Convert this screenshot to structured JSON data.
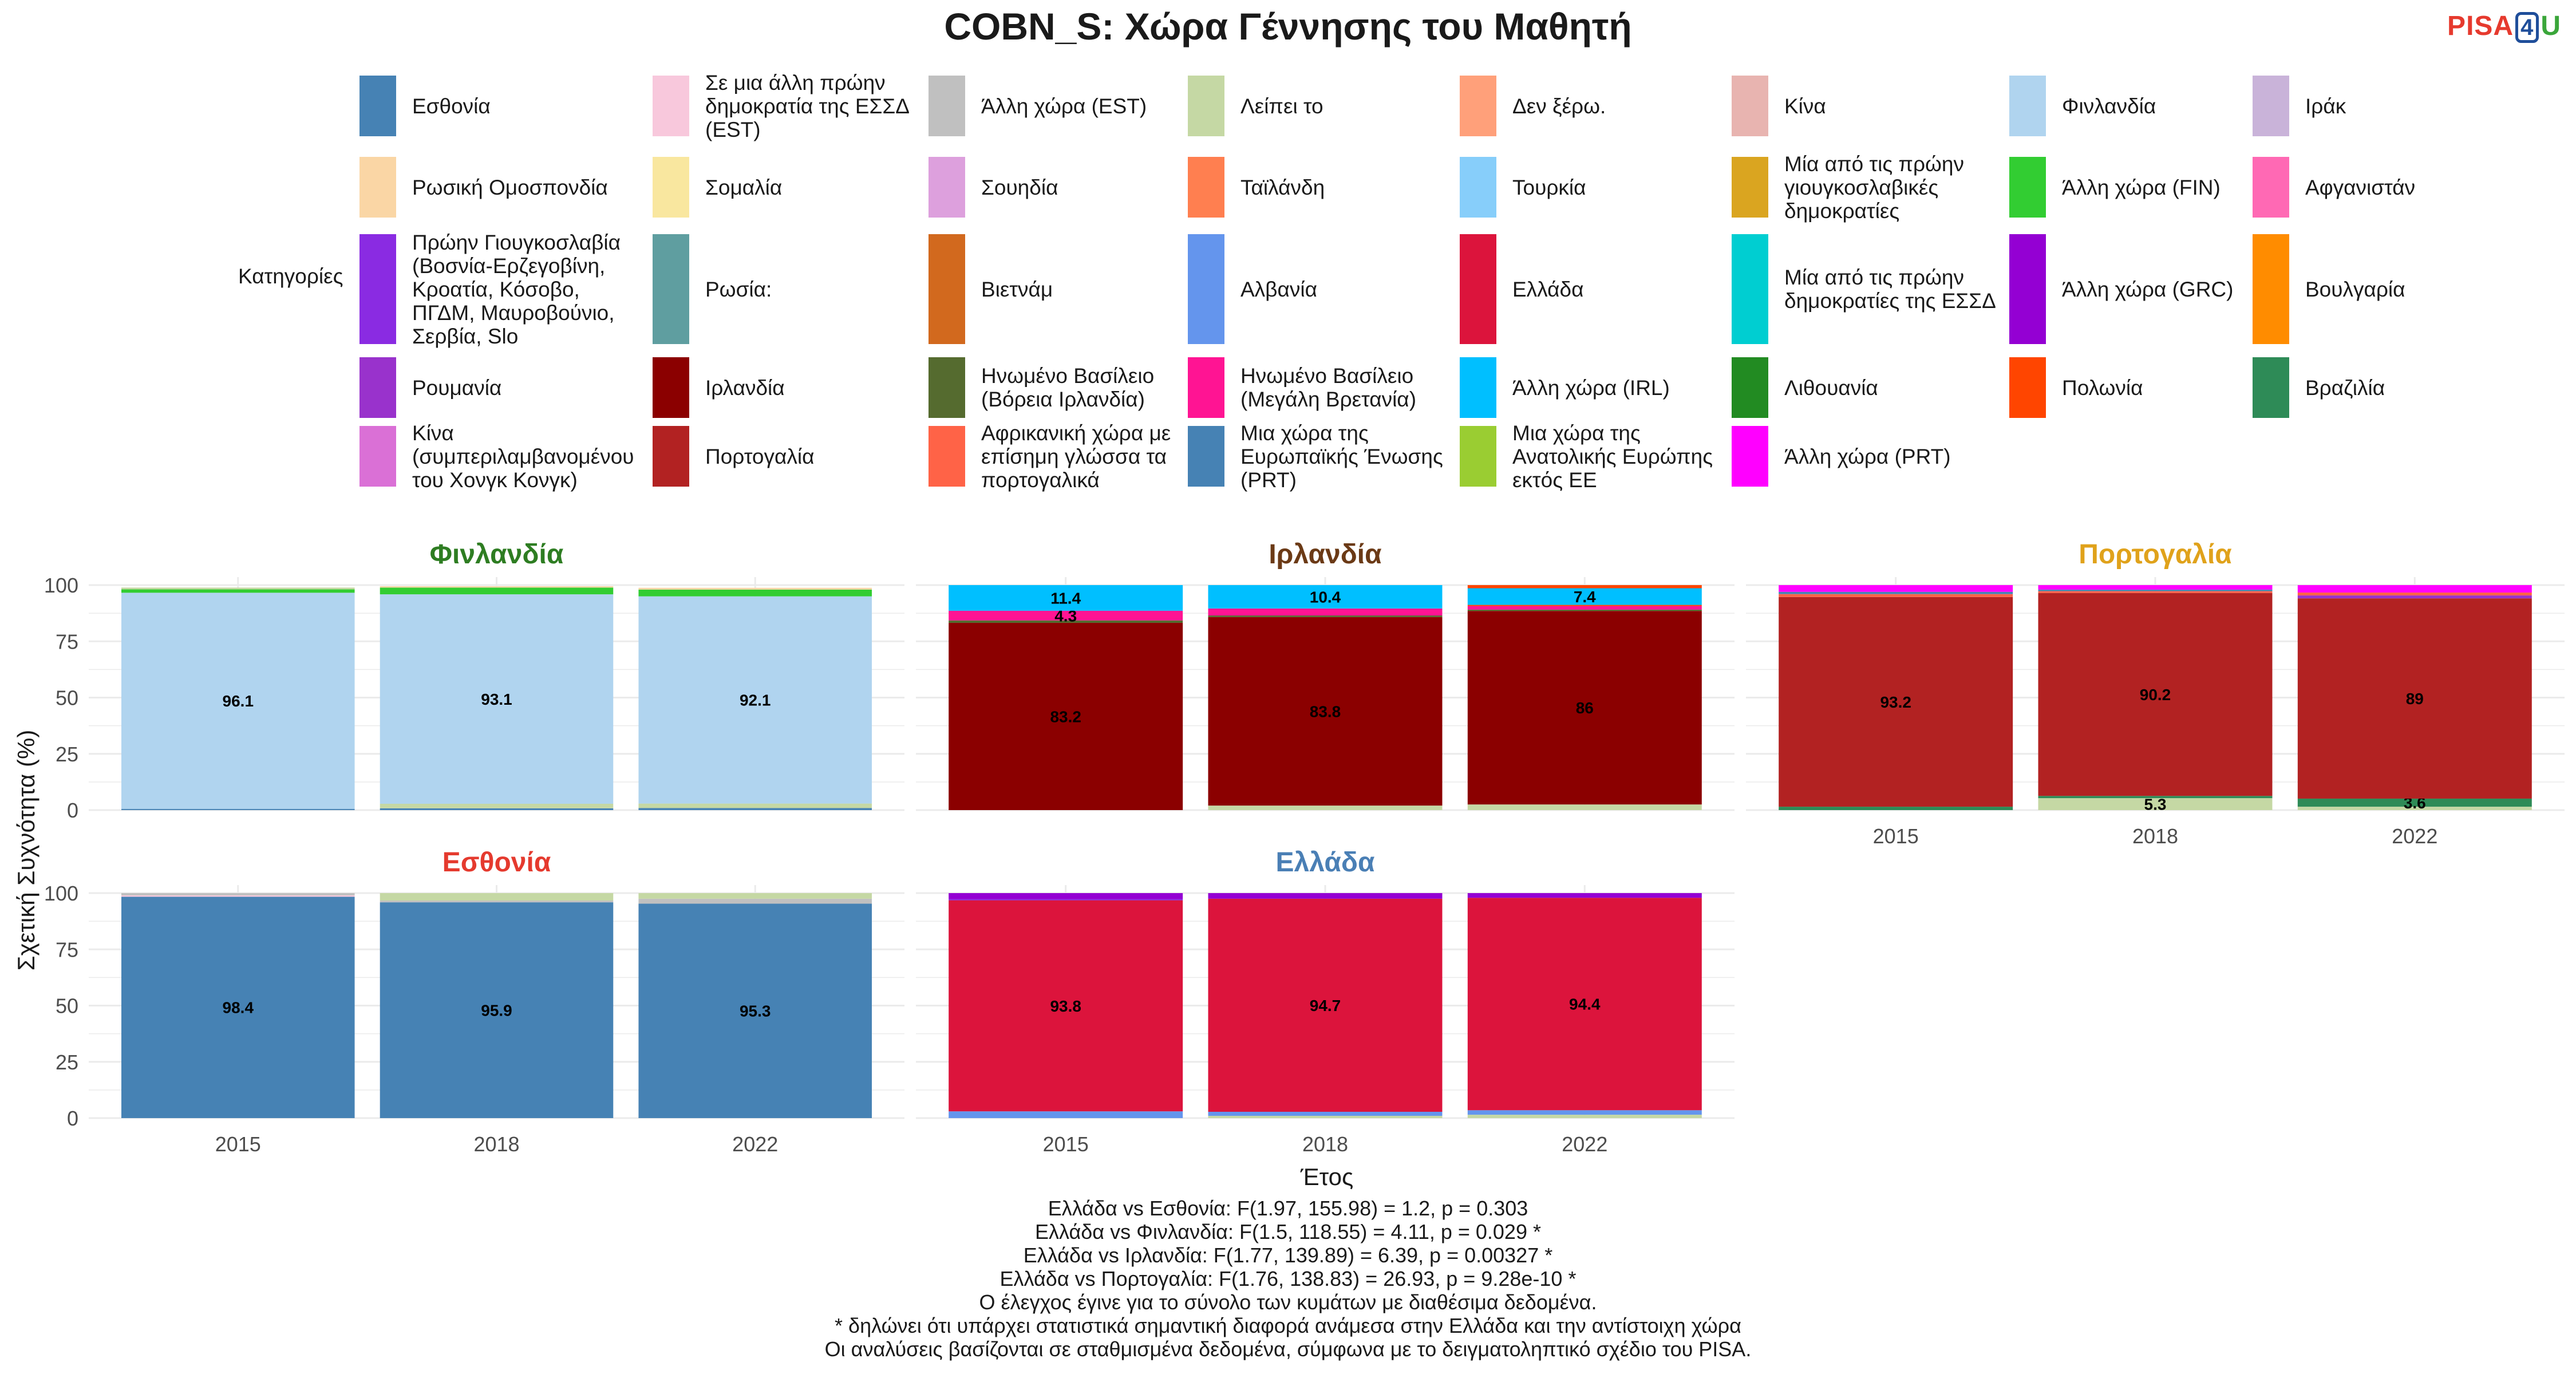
{
  "title": "COBN_S: Χώρα Γέννησης του Μαθητή",
  "logo": {
    "part1": "PISA",
    "part2": "4",
    "part3": "U"
  },
  "legend": {
    "title": "Κατηγορίες",
    "items": [
      {
        "label": "Εσθονία",
        "color": "#4682B4"
      },
      {
        "label": "Σε μια άλλη πρώην δημοκρατία της ΕΣΣΔ (EST)",
        "color": "#F8C8DC"
      },
      {
        "label": "Άλλη χώρα (EST)",
        "color": "#C0C0C0"
      },
      {
        "label": "Λείπει το",
        "color": "#C5D8A4"
      },
      {
        "label": "Δεν ξέρω.",
        "color": "#FFA07A"
      },
      {
        "label": "Κίνα",
        "color": "#E8B4B0"
      },
      {
        "label": "Φινλανδία",
        "color": "#B0D4EF"
      },
      {
        "label": "Ιράκ",
        "color": "#C9B3D9"
      },
      {
        "label": "Ρωσική Ομοσπονδία",
        "color": "#FAD6A5"
      },
      {
        "label": "Σομαλία",
        "color": "#F9E79F"
      },
      {
        "label": "Σουηδία",
        "color": "#DDA0DD"
      },
      {
        "label": "Ταϊλάνδη",
        "color": "#FF7F50"
      },
      {
        "label": "Τουρκία",
        "color": "#87CEFA"
      },
      {
        "label": "Μία από τις πρώην γιουγκοσλαβικές δημοκρατίες",
        "color": "#DAA520"
      },
      {
        "label": "Άλλη χώρα (FIN)",
        "color": "#32CD32"
      },
      {
        "label": "Αφγανιστάν",
        "color": "#FF69B4"
      },
      {
        "label": "Πρώην Γιουγκοσλαβία (Βοσνία-Ερζεγοβίνη, Κροατία, Κόσοβο, ΠΓΔΜ, Μαυροβούνιο, Σερβία, Slo",
        "color": "#8A2BE2"
      },
      {
        "label": "Ρωσία:",
        "color": "#5F9EA0"
      },
      {
        "label": "Βιετνάμ",
        "color": "#D2691E"
      },
      {
        "label": "Αλβανία",
        "color": "#6495ED"
      },
      {
        "label": "Ελλάδα",
        "color": "#DC143C"
      },
      {
        "label": "Μία από τις πρώην δημοκρατίες της ΕΣΣΔ",
        "color": "#00CED1"
      },
      {
        "label": "Άλλη χώρα (GRC)",
        "color": "#9400D3"
      },
      {
        "label": "Βουλγαρία",
        "color": "#FF8C00"
      },
      {
        "label": "Ρουμανία",
        "color": "#9932CC"
      },
      {
        "label": "Ιρλανδία",
        "color": "#8B0000"
      },
      {
        "label": "Ηνωμένο Βασίλειο (Βόρεια Ιρλανδία)",
        "color": "#556B2F"
      },
      {
        "label": "Ηνωμένο Βασίλειο (Μεγάλη Βρετανία)",
        "color": "#FF1493"
      },
      {
        "label": "Άλλη χώρα (IRL)",
        "color": "#00BFFF"
      },
      {
        "label": "Λιθουανία",
        "color": "#228B22"
      },
      {
        "label": "Πολωνία",
        "color": "#FF4500"
      },
      {
        "label": "Βραζιλία",
        "color": "#2E8B57"
      },
      {
        "label": "Κίνα (συμπεριλαμβανομένου του Χονγκ Κονγκ)",
        "color": "#DA70D6"
      },
      {
        "label": "Πορτογαλία",
        "color": "#B22222"
      },
      {
        "label": "Αφρικανική χώρα με επίσημη γλώσσα τα πορτογαλικά",
        "color": "#FF6347"
      },
      {
        "label": "Μια χώρα της Ευρωπαϊκής Ένωσης (PRT)",
        "color": "#4682B4"
      },
      {
        "label": "Μια χώρα της Ανατολικής Ευρώπης εκτός ΕΕ",
        "color": "#9ACD32"
      },
      {
        "label": "Άλλη χώρα (PRT)",
        "color": "#FF00FF"
      }
    ]
  },
  "chart_data": {
    "type": "bar",
    "stacked": true,
    "ylabel": "Σχετική Συχνότητα (%)",
    "xlabel": "Έτος",
    "ylim": [
      0,
      100
    ],
    "yticks": [
      0,
      25,
      50,
      75,
      100
    ],
    "grid": true,
    "legend_position": "top",
    "categories": [
      "2015",
      "2018",
      "2022"
    ],
    "panels": [
      {
        "name": "Φινλανδία",
        "title_color": "#2E7D22",
        "bars": [
          [
            {
              "c": "Εσθονία",
              "v": 0.5
            },
            {
              "c": "Φινλανδία",
              "v": 96.1,
              "label": "96.1"
            },
            {
              "c": "Άλλη χώρα (FIN)",
              "v": 1.5
            },
            {
              "c": "Λείπει το",
              "v": 0.8
            }
          ],
          [
            {
              "c": "Εσθονία",
              "v": 0.8
            },
            {
              "c": "Λείπει το",
              "v": 2.0
            },
            {
              "c": "Φινλανδία",
              "v": 93.1,
              "label": "93.1"
            },
            {
              "c": "Άλλη χώρα (FIN)",
              "v": 3.0
            },
            {
              "c": "Ρωσική Ομοσπονδία",
              "v": 0.6
            }
          ],
          [
            {
              "c": "Εσθονία",
              "v": 0.9
            },
            {
              "c": "Λείπει το",
              "v": 2.0
            },
            {
              "c": "Φινλανδία",
              "v": 92.1,
              "label": "92.1"
            },
            {
              "c": "Άλλη χώρα (FIN)",
              "v": 3.0
            },
            {
              "c": "Ρωσική Ομοσπονδία",
              "v": 0.8
            }
          ]
        ]
      },
      {
        "name": "Ιρλανδία",
        "title_color": "#6B3A16",
        "bars": [
          [
            {
              "c": "Ιρλανδία",
              "v": 83.2,
              "label": "83.2"
            },
            {
              "c": "Ηνωμένο Βασίλειο (Βόρεια Ιρλανδία)",
              "v": 1.1
            },
            {
              "c": "Ηνωμένο Βασίλειο (Μεγάλη Βρετανία)",
              "v": 4.3,
              "label": "4.3"
            },
            {
              "c": "Άλλη χώρα (IRL)",
              "v": 11.4,
              "label": "11.4"
            }
          ],
          [
            {
              "c": "Λείπει το",
              "v": 2.0
            },
            {
              "c": "Ιρλανδία",
              "v": 83.8,
              "label": "83.8"
            },
            {
              "c": "Ηνωμένο Βασίλειο (Βόρεια Ιρλανδία)",
              "v": 0.7
            },
            {
              "c": "Ηνωμένο Βασίλειο (Μεγάλη Βρετανία)",
              "v": 3.1
            },
            {
              "c": "Άλλη χώρα (IRL)",
              "v": 10.4,
              "label": "10.4"
            }
          ],
          [
            {
              "c": "Λείπει το",
              "v": 2.5
            },
            {
              "c": "Ιρλανδία",
              "v": 86,
              "label": "86"
            },
            {
              "c": "Ηνωμένο Βασίλειο (Βόρεια Ιρλανδία)",
              "v": 0.6
            },
            {
              "c": "Ηνωμένο Βασίλειο (Μεγάλη Βρετανία)",
              "v": 1.6
            },
            {
              "c": "Πολωνία",
              "v": 0.5
            },
            {
              "c": "Άλλη χώρα (IRL)",
              "v": 7.4,
              "label": "7.4"
            },
            {
              "c": "Πολωνία",
              "v": 1.4
            }
          ]
        ]
      },
      {
        "name": "Πορτογαλία",
        "title_color": "#E0A21B",
        "bars": [
          [
            {
              "c": "Βραζιλία",
              "v": 1.5
            },
            {
              "c": "Πορτογαλία",
              "v": 93.2,
              "label": "93.2"
            },
            {
              "c": "Αφρικανική χώρα με επίσημη γλώσσα τα πορτογαλικά",
              "v": 1.3
            },
            {
              "c": "Μια χώρα της Ευρωπαϊκής Ένωσης (PRT)",
              "v": 1.0
            },
            {
              "c": "Άλλη χώρα (PRT)",
              "v": 3.0
            }
          ],
          [
            {
              "c": "Λείπει το",
              "v": 5.3,
              "label": "5.3"
            },
            {
              "c": "Βραζιλία",
              "v": 1.0
            },
            {
              "c": "Πορτογαλία",
              "v": 90.2,
              "label": "90.2"
            },
            {
              "c": "Αφρικανική χώρα με επίσημη γλώσσα τα πορτογαλικά",
              "v": 0.8
            },
            {
              "c": "Μια χώρα της Ευρωπαϊκής Ένωσης (PRT)",
              "v": 0.7
            },
            {
              "c": "Άλλη χώρα (PRT)",
              "v": 2.0
            }
          ],
          [
            {
              "c": "Λείπει το",
              "v": 1.5
            },
            {
              "c": "Βραζιλία",
              "v": 3.6,
              "label": "3.6"
            },
            {
              "c": "Πορτογαλία",
              "v": 89,
              "label": "89"
            },
            {
              "c": "Ρουμανία",
              "v": 1.3
            },
            {
              "c": "Αφρικανική χώρα με επίσημη γλώσσα τα πορτογαλικά",
              "v": 1.3
            },
            {
              "c": "Άλλη χώρα (PRT)",
              "v": 3.3
            }
          ]
        ]
      },
      {
        "name": "Εσθονία",
        "title_color": "#E53A2E",
        "bars": [
          [
            {
              "c": "Εσθονία",
              "v": 98.4,
              "label": "98.4"
            },
            {
              "c": "Σε μια άλλη πρώην δημοκρατία της ΕΣΣΔ (EST)",
              "v": 0.6
            },
            {
              "c": "Άλλη χώρα (EST)",
              "v": 1.0
            }
          ],
          [
            {
              "c": "Εσθονία",
              "v": 95.9,
              "label": "95.9"
            },
            {
              "c": "Άλλη χώρα (EST)",
              "v": 0.8
            },
            {
              "c": "Λείπει το",
              "v": 3.3
            }
          ],
          [
            {
              "c": "Εσθονία",
              "v": 95.3,
              "label": "95.3"
            },
            {
              "c": "Άλλη χώρα (EST)",
              "v": 2.2
            },
            {
              "c": "Λείπει το",
              "v": 2.5
            }
          ]
        ]
      },
      {
        "name": "Ελλάδα",
        "title_color": "#4A7FB5",
        "bars": [
          [
            {
              "c": "Αλβανία",
              "v": 3.0
            },
            {
              "c": "Ελλάδα",
              "v": 93.8,
              "label": "93.8"
            },
            {
              "c": "Πρώην Γιουγκοσλαβία (Βοσνία-Ερζεγοβίνη, Κροατία, Κόσοβο, ΠΓΔΜ, Μαυροβούνιο, Σερβία, Slo",
              "v": 0.5
            },
            {
              "c": "Άλλη χώρα (GRC)",
              "v": 2.7
            }
          ],
          [
            {
              "c": "Λείπει το",
              "v": 1.0
            },
            {
              "c": "Αλβανία",
              "v": 1.8
            },
            {
              "c": "Ελλάδα",
              "v": 94.7,
              "label": "94.7"
            },
            {
              "c": "Άλλη χώρα (GRC)",
              "v": 2.5
            }
          ],
          [
            {
              "c": "Λείπει το",
              "v": 1.5
            },
            {
              "c": "Αλβανία",
              "v": 2.0
            },
            {
              "c": "Ελλάδα",
              "v": 94.4,
              "label": "94.4"
            },
            {
              "c": "Άλλη χώρα (GRC)",
              "v": 2.1
            }
          ]
        ]
      }
    ]
  },
  "footnotes": [
    "Ελλάδα vs Εσθονία: F(1.97, 155.98) = 1.2, p = 0.303",
    "Ελλάδα vs Φινλανδία: F(1.5, 118.55) = 4.11, p = 0.029 *",
    "Ελλάδα vs Ιρλανδία: F(1.77, 139.89) = 6.39, p = 0.00327 *",
    "Ελλάδα vs Πορτογαλία: F(1.76, 138.83) = 26.93, p = 9.28e-10 *",
    "Ο έλεγχος έγινε για το σύνολο των κυμάτων με διαθέσιμα δεδομένα.",
    "* δηλώνει ότι υπάρχει στατιστικά σημαντική διαφορά ανάμεσα στην Ελλάδα και την αντίστοιχη χώρα",
    "Οι αναλύσεις βασίζονται σε σταθμισμένα δεδομένα, σύμφωνα με το δειγματοληπτικό σχέδιο του PISA."
  ]
}
